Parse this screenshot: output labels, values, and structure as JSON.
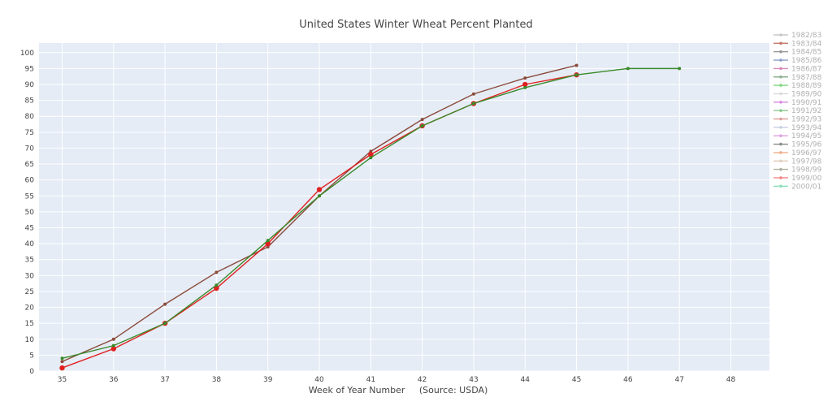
{
  "chart_data": {
    "type": "line",
    "title": "United States Winter Wheat Percent Planted",
    "xlabel": "Week of Year Number     (Source: USDA)",
    "ylabel": "",
    "xlim": [
      34.55,
      48.75
    ],
    "ylim": [
      0,
      103
    ],
    "x_ticks": [
      35,
      36,
      37,
      38,
      39,
      40,
      41,
      42,
      43,
      44,
      45,
      46,
      47,
      48
    ],
    "y_ticks": [
      0,
      5,
      10,
      15,
      20,
      25,
      30,
      35,
      40,
      45,
      50,
      55,
      60,
      65,
      70,
      75,
      80,
      85,
      90,
      95,
      100
    ],
    "grid": true,
    "legend_position": "right",
    "legend": [
      {
        "name": "1982/83",
        "color": "#c8c8c8"
      },
      {
        "name": "1983/84",
        "color": "#c47a6a"
      },
      {
        "name": "1984/85",
        "color": "#9a9a9a"
      },
      {
        "name": "1985/86",
        "color": "#8c9ec8"
      },
      {
        "name": "1986/87",
        "color": "#d88ab8"
      },
      {
        "name": "1987/88",
        "color": "#8cb08c"
      },
      {
        "name": "1988/89",
        "color": "#7fd67f"
      },
      {
        "name": "1989/90",
        "color": "#dadada"
      },
      {
        "name": "1990/91",
        "color": "#d98be0"
      },
      {
        "name": "1991/92",
        "color": "#8cc88c"
      },
      {
        "name": "1992/93",
        "color": "#e0a0a0"
      },
      {
        "name": "1993/94",
        "color": "#c8cfe0"
      },
      {
        "name": "1994/95",
        "color": "#e0a0e0"
      },
      {
        "name": "1995/96",
        "color": "#8a8a8a"
      },
      {
        "name": "1996/97",
        "color": "#f0b08a"
      },
      {
        "name": "1997/98",
        "color": "#e0d0c0"
      },
      {
        "name": "1998/99",
        "color": "#b0b0a0"
      },
      {
        "name": "1999/00",
        "color": "#f08a8a"
      },
      {
        "name": "2000/01",
        "color": "#8ae0b8"
      }
    ],
    "series": [
      {
        "color": "#8b4b3b",
        "marker_radius": 2,
        "x": [
          35,
          36,
          37,
          38,
          39,
          40,
          41,
          42,
          43,
          44,
          45
        ],
        "values": [
          3,
          10,
          21,
          31,
          39,
          55,
          69,
          79,
          87,
          92,
          96
        ]
      },
      {
        "color": "#e02020",
        "marker_radius": 3.2,
        "x": [
          35,
          36,
          37,
          38,
          39,
          40,
          41,
          42,
          43,
          44,
          45
        ],
        "values": [
          1,
          7,
          15,
          26,
          40,
          57,
          68,
          77,
          84,
          90,
          93
        ]
      },
      {
        "color": "#3a8a2a",
        "marker_radius": 2,
        "x": [
          35,
          36,
          37,
          38,
          39,
          40,
          41,
          42,
          43,
          44,
          45,
          46,
          47
        ],
        "values": [
          4,
          8,
          15,
          27,
          41,
          55,
          67,
          77,
          84,
          89,
          93,
          95,
          95
        ]
      }
    ]
  }
}
